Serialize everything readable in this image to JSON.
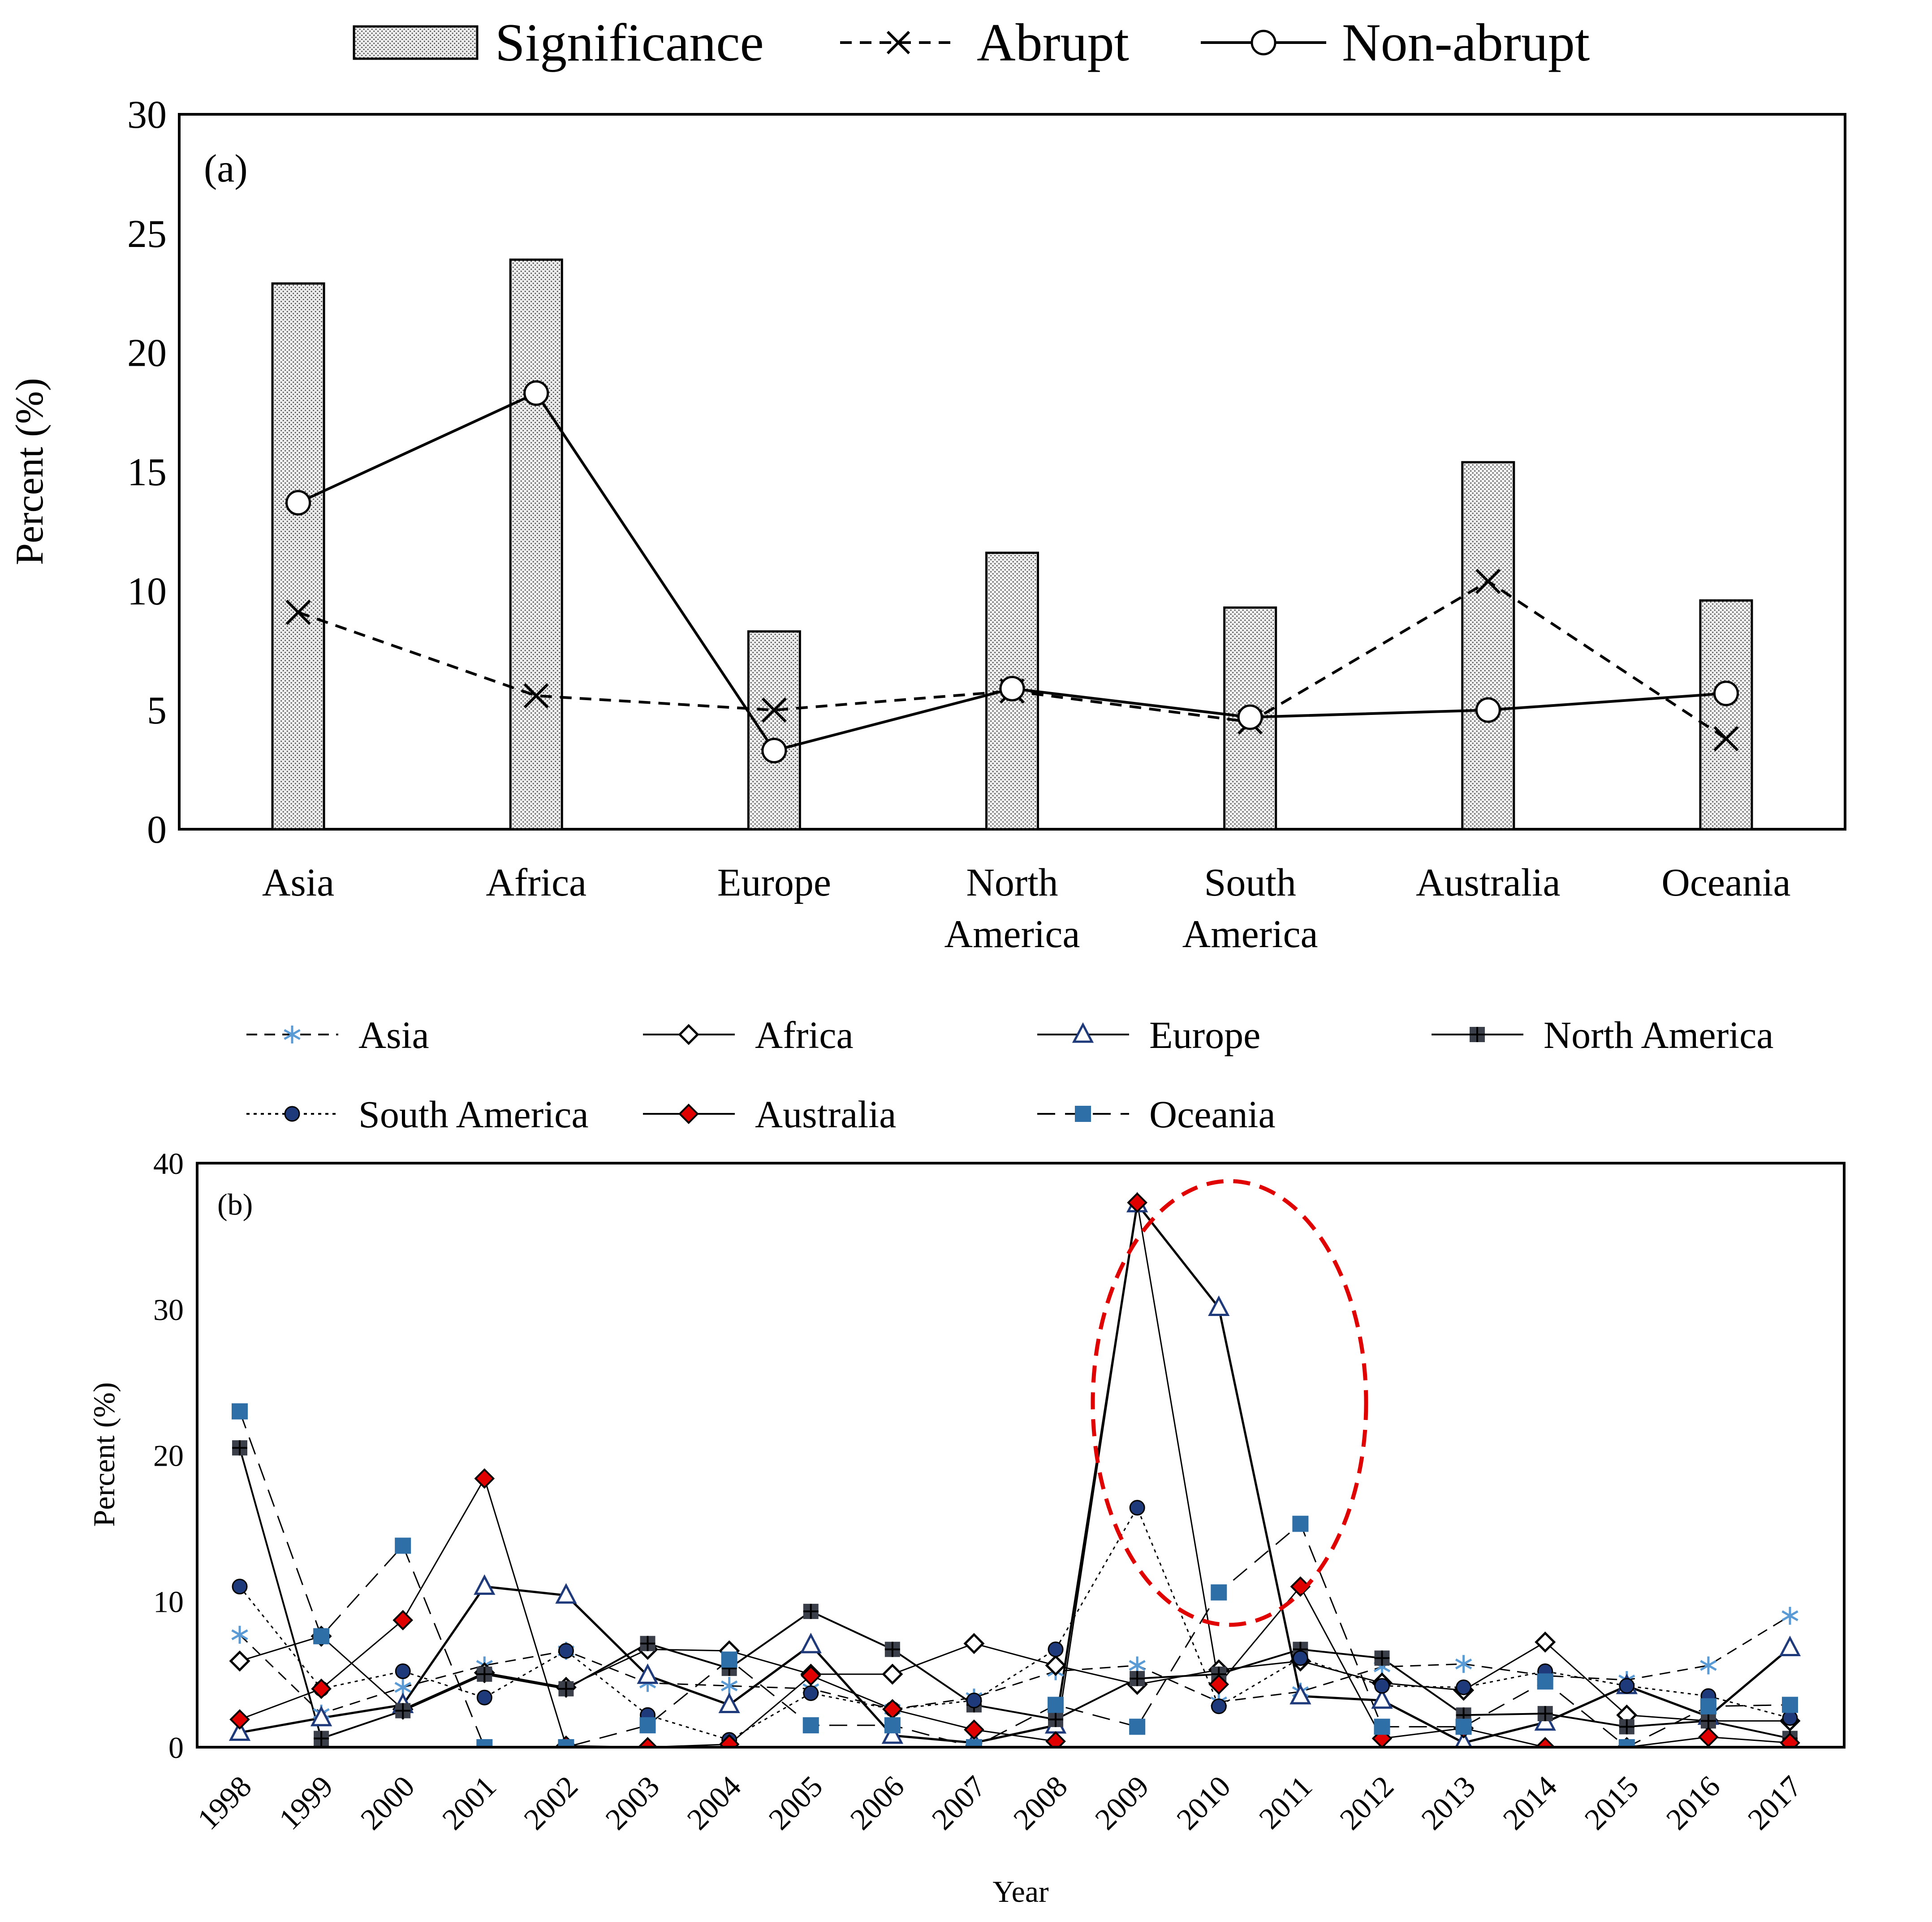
{
  "chart_data": [
    {
      "type": "bar",
      "panel_label": "(a)",
      "title": "",
      "xlabel": "",
      "ylabel": "Percent (%)",
      "ylim": [
        0,
        30
      ],
      "yticks": [
        0,
        5,
        10,
        15,
        20,
        25,
        30
      ],
      "categories": [
        "Asia",
        "Africa",
        "Europe",
        "North America",
        "South America",
        "Australia",
        "Oceania"
      ],
      "category_lines": [
        [
          "Asia"
        ],
        [
          "Africa"
        ],
        [
          "Europe"
        ],
        [
          "North",
          "America"
        ],
        [
          "South",
          "America"
        ],
        [
          "Australia"
        ],
        [
          "Oceania"
        ]
      ],
      "legend_position": "top-center",
      "series": [
        {
          "name": "Significance",
          "kind": "bar",
          "style": "dotted-fill",
          "values": [
            22.9,
            23.9,
            8.3,
            11.6,
            9.3,
            15.4,
            9.6
          ]
        },
        {
          "name": "Abrupt",
          "kind": "line",
          "style": "dashed",
          "marker": "x",
          "values": [
            9.1,
            5.6,
            5.0,
            5.8,
            4.5,
            10.4,
            3.8
          ]
        },
        {
          "name": "Non-abrupt",
          "kind": "line",
          "style": "solid",
          "marker": "open-circle",
          "values": [
            13.7,
            18.3,
            3.3,
            5.9,
            4.7,
            5.0,
            5.7
          ]
        }
      ]
    },
    {
      "type": "line",
      "panel_label": "(b)",
      "title": "",
      "xlabel": "Year",
      "ylabel": "Percent (%)",
      "ylim": [
        0,
        40
      ],
      "yticks": [
        0,
        10,
        20,
        30,
        40
      ],
      "x": [
        "1998",
        "1999",
        "2000",
        "2001",
        "2002",
        "2003",
        "2004",
        "2005",
        "2006",
        "2007",
        "2008",
        "2009",
        "2010",
        "2011",
        "2012",
        "2013",
        "2014",
        "2015",
        "2016",
        "2017"
      ],
      "legend_position": "top",
      "annotation": "red dashed ellipse highlighting 2008–2011 peaks",
      "series": [
        {
          "name": "Asia",
          "style": "dashed",
          "marker": "asterisk",
          "color": "#5b9bd5",
          "values": [
            7.7,
            2.3,
            4.1,
            5.6,
            6.6,
            4.4,
            4.2,
            4.0,
            2.6,
            3.4,
            5.2,
            5.6,
            3.1,
            3.8,
            5.5,
            5.7,
            4.9,
            4.6,
            5.6,
            9.0
          ]
        },
        {
          "name": "Africa",
          "style": "solid",
          "marker": "open-diamond",
          "color": "#000000",
          "values": [
            5.9,
            7.6,
            2.6,
            5.1,
            4.1,
            6.7,
            6.6,
            5.0,
            5.0,
            7.1,
            5.6,
            4.3,
            5.3,
            5.9,
            4.4,
            3.9,
            7.2,
            2.2,
            1.8,
            1.8
          ]
        },
        {
          "name": "Europe",
          "style": "solid",
          "marker": "open-triangle",
          "color": "#1f3a7a",
          "values": [
            1.0,
            2.0,
            2.9,
            11.0,
            10.4,
            4.9,
            2.9,
            7.0,
            0.8,
            0.3,
            1.5,
            37.2,
            30.1,
            3.5,
            3.2,
            0.3,
            1.7,
            4.2,
            2.1,
            6.8
          ]
        },
        {
          "name": "North America",
          "style": "solid",
          "marker": "cross-square",
          "color": "#3a3f4a",
          "values": [
            20.5,
            0.6,
            2.5,
            5.0,
            4.0,
            7.1,
            5.4,
            9.3,
            6.7,
            2.9,
            1.9,
            4.7,
            5.0,
            6.7,
            6.1,
            2.2,
            2.3,
            1.4,
            1.8,
            0.6
          ]
        },
        {
          "name": "South America",
          "style": "dotted",
          "marker": "filled-circle",
          "color": "#1f3a7a",
          "values": [
            11.0,
            4.0,
            5.2,
            3.4,
            6.6,
            2.2,
            0.5,
            3.7,
            2.6,
            3.2,
            6.7,
            16.4,
            2.8,
            6.1,
            4.2,
            4.1,
            5.2,
            4.2,
            3.5,
            2.0
          ]
        },
        {
          "name": "Australia",
          "style": "solid",
          "marker": "red-diamond",
          "color": "#e00000",
          "values": [
            1.9,
            4.0,
            8.7,
            18.4,
            0.1,
            0.0,
            0.2,
            4.9,
            2.6,
            1.2,
            0.4,
            37.3,
            4.3,
            11.0,
            0.6,
            1.3,
            0.0,
            0.0,
            0.7,
            0.3
          ]
        },
        {
          "name": "Oceania",
          "style": "long-dash",
          "marker": "filled-square",
          "color": "#2e6fa8",
          "values": [
            23.0,
            7.6,
            13.8,
            0.0,
            0.0,
            1.5,
            6.0,
            1.5,
            1.5,
            0.0,
            2.9,
            1.4,
            10.6,
            15.3,
            1.4,
            1.4,
            4.5,
            0.0,
            2.8,
            2.9
          ]
        }
      ]
    }
  ]
}
